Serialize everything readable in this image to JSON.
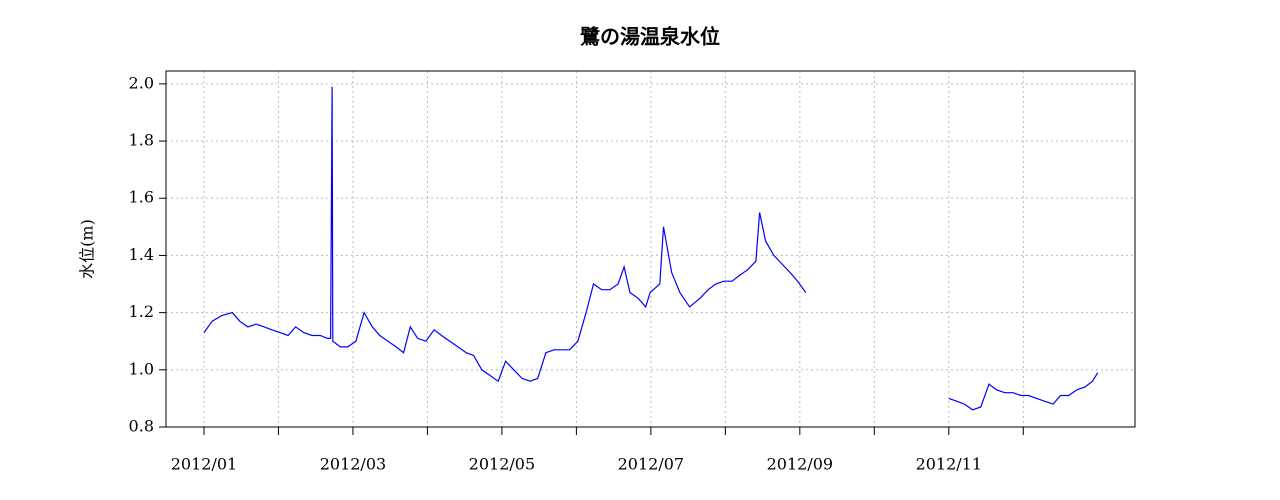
{
  "chart_data": {
    "type": "line",
    "title": "鷺の湯温泉水位",
    "y_label": "水位(m)",
    "x": [
      1.0,
      1.11,
      1.24,
      1.38,
      1.48,
      1.59,
      1.7,
      1.81,
      1.91,
      2.02,
      2.13,
      2.23,
      2.34,
      2.45,
      2.56,
      2.66,
      2.7,
      2.72,
      2.73,
      2.83,
      2.93,
      3.04,
      3.15,
      3.26,
      3.36,
      3.47,
      3.58,
      3.68,
      3.77,
      3.87,
      3.98,
      4.09,
      4.19,
      4.3,
      4.41,
      4.52,
      4.62,
      4.73,
      4.84,
      4.95,
      5.05,
      5.16,
      5.27,
      5.38,
      5.48,
      5.59,
      5.7,
      5.81,
      5.91,
      6.02,
      6.13,
      6.23,
      6.34,
      6.45,
      6.56,
      6.64,
      6.72,
      6.83,
      6.93,
      6.99,
      7.12,
      7.17,
      7.28,
      7.39,
      7.52,
      7.66,
      7.77,
      7.87,
      7.98,
      8.09,
      8.19,
      8.3,
      8.41,
      8.46,
      8.54,
      8.65,
      8.76,
      8.87,
      8.97,
      9.08,
      10.0,
      11.0,
      11.11,
      11.21,
      11.32,
      11.43,
      11.54,
      11.64,
      11.75,
      11.86,
      11.97,
      12.07,
      12.18,
      12.29,
      12.4,
      12.5,
      12.61,
      12.72,
      12.83,
      12.93,
      13.0
    ],
    "series": [
      {
        "name": "水位",
        "color": "#0000ff",
        "values": [
          1.13,
          1.17,
          1.19,
          1.2,
          1.17,
          1.15,
          1.16,
          1.15,
          1.14,
          1.13,
          1.12,
          1.15,
          1.13,
          1.12,
          1.12,
          1.11,
          1.11,
          1.99,
          1.1,
          1.08,
          1.08,
          1.1,
          1.2,
          1.15,
          1.12,
          1.1,
          1.08,
          1.06,
          1.15,
          1.11,
          1.1,
          1.14,
          1.12,
          1.1,
          1.08,
          1.06,
          1.05,
          1.0,
          0.98,
          0.96,
          1.03,
          1.0,
          0.97,
          0.96,
          0.97,
          1.06,
          1.07,
          1.07,
          1.07,
          1.1,
          1.2,
          1.3,
          1.28,
          1.28,
          1.3,
          1.36,
          1.27,
          1.25,
          1.22,
          1.27,
          1.3,
          1.5,
          1.34,
          1.27,
          1.22,
          1.25,
          1.28,
          1.3,
          1.31,
          1.31,
          1.33,
          1.35,
          1.38,
          1.55,
          1.45,
          1.4,
          1.37,
          1.34,
          1.31,
          1.27,
          null,
          0.9,
          0.89,
          0.88,
          0.86,
          0.87,
          0.95,
          0.93,
          0.92,
          0.92,
          0.91,
          0.91,
          0.9,
          0.89,
          0.88,
          0.91,
          0.91,
          0.93,
          0.94,
          0.96,
          0.99
        ]
      }
    ],
    "xlim": [
      0.49,
      13.5
    ],
    "ylim": [
      0.8,
      2.045
    ],
    "xticks": [
      {
        "value": 1,
        "label": "2012/01"
      },
      {
        "value": 2,
        "label": null
      },
      {
        "value": 3,
        "label": "2012/03"
      },
      {
        "value": 4,
        "label": null
      },
      {
        "value": 5,
        "label": "2012/05"
      },
      {
        "value": 6,
        "label": null
      },
      {
        "value": 7,
        "label": "2012/07"
      },
      {
        "value": 8,
        "label": null
      },
      {
        "value": 9,
        "label": "2012/09"
      },
      {
        "value": 10,
        "label": null
      },
      {
        "value": 11,
        "label": "2012/11"
      },
      {
        "value": 12,
        "label": null
      }
    ],
    "yticks": [
      0.8,
      {
        "value": 1.0,
        "label": "1.0"
      },
      1.2,
      1.4,
      1.6,
      1.8,
      {
        "value": 2.0,
        "label": "2.0"
      }
    ],
    "grid": true
  }
}
